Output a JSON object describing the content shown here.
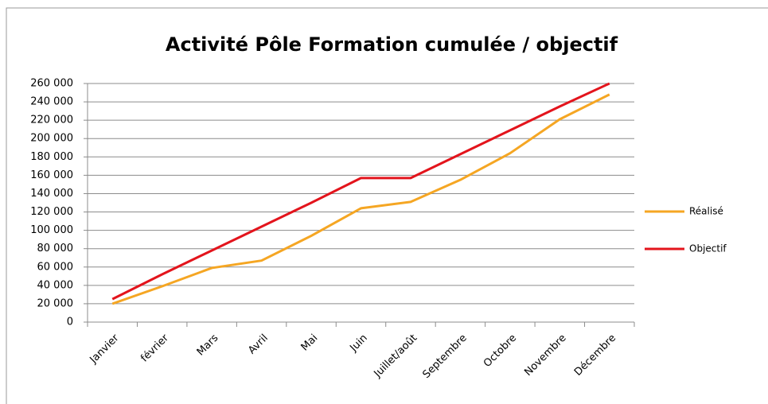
{
  "chart_data": {
    "type": "line",
    "title": "Activité Pôle Formation cumulée / objectif",
    "categories": [
      "Janvier",
      "février",
      "Mars",
      "Avril",
      "Mai",
      "Juin",
      "Juillet/août",
      "Septembre",
      "Octobre",
      "Novembre",
      "Décembre"
    ],
    "series": [
      {
        "name": "Réalisé",
        "color": "#f5a623",
        "values": [
          20000,
          39000,
          59000,
          67000,
          94000,
          124000,
          131000,
          155000,
          184000,
          221000,
          248000
        ]
      },
      {
        "name": "Objectif",
        "color": "#e3141c",
        "values": [
          25000,
          52000,
          78000,
          104000,
          130000,
          157000,
          157000,
          183000,
          209000,
          235000,
          260000
        ]
      }
    ],
    "ylim": [
      0,
      260000
    ],
    "yticks": [
      0,
      {
        "value": 20000,
        "label": "20 000"
      },
      {
        "value": 40000,
        "label": "40 000"
      },
      {
        "value": 60000,
        "label": "60 000"
      },
      {
        "value": 80000,
        "label": "80 000"
      },
      {
        "value": 100000,
        "label": "100 000"
      },
      {
        "value": 120000,
        "label": "120 000"
      },
      {
        "value": 140000,
        "label": "140 000"
      },
      {
        "value": 160000,
        "label": "160 000"
      },
      {
        "value": 180000,
        "label": "180 000"
      },
      {
        "value": 200000,
        "label": "200 000"
      },
      {
        "value": 220000,
        "label": "220 000"
      },
      {
        "value": 240000,
        "label": "240 000"
      },
      {
        "value": 260000,
        "label": "260 000"
      }
    ],
    "grid": true,
    "legend": "right"
  }
}
